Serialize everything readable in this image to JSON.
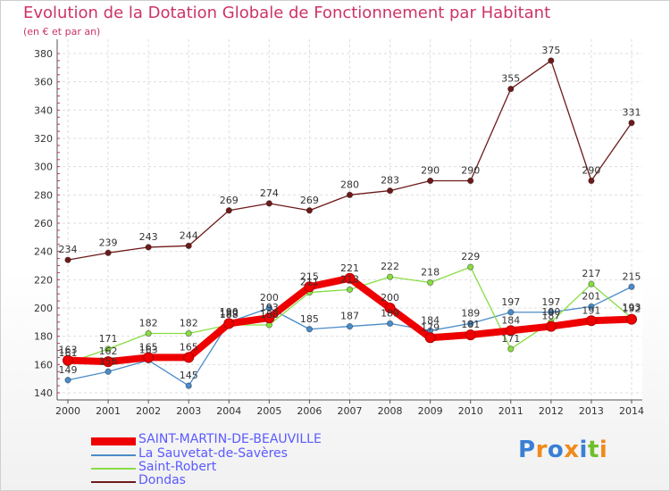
{
  "header": {
    "title": "Evolution de la Dotation Globale de Fonctionnement par Habitant",
    "subtitle": "(en € et par an)"
  },
  "logo": {
    "text": "Proxiti"
  },
  "chart_data": {
    "type": "line",
    "title": "Evolution de la Dotation Globale de Fonctionnement par Habitant",
    "subtitle": "(en € et par an)",
    "xlabel": "",
    "ylabel": "",
    "ylim": [
      140,
      380
    ],
    "yticks": [
      140,
      160,
      180,
      200,
      220,
      240,
      260,
      280,
      300,
      320,
      340,
      360,
      380
    ],
    "x": [
      "2000",
      "2001",
      "2002",
      "2003",
      "2004",
      "2005",
      "2006",
      "2007",
      "2008",
      "2009",
      "2010",
      "2011",
      "2012",
      "2013",
      "2014"
    ],
    "legend_position": "bottom-left",
    "series": [
      {
        "name": "Dondas",
        "color": "#6e1a1a",
        "values": [
          234,
          239,
          243,
          244,
          269,
          274,
          269,
          280,
          283,
          290,
          290,
          355,
          375,
          290,
          331
        ],
        "labels": [
          "234",
          "239",
          "243",
          "244",
          "269",
          "274",
          "269",
          "280",
          "283",
          "290",
          "290",
          "355",
          "375",
          "290",
          "331"
        ]
      },
      {
        "name": "La Sauvetat-de-Savères",
        "color": "#4a8cc8",
        "values": [
          149,
          155,
          163,
          145,
          190,
          200,
          185,
          187,
          189,
          184,
          189,
          197,
          197,
          201,
          215
        ],
        "labels": [
          "149",
          "155",
          "163",
          "145",
          "190",
          "200",
          "185",
          "187",
          "189",
          "184",
          "189",
          "197",
          "197",
          "201",
          "215"
        ]
      },
      {
        "name": "Saint-Robert",
        "color": "#88dd44",
        "values": [
          161,
          171,
          182,
          182,
          188,
          188,
          211,
          213,
          222,
          218,
          229,
          171,
          190,
          217,
          193
        ],
        "labels": [
          "161",
          "171",
          "182",
          "182",
          "188",
          "188",
          "211",
          "213",
          "222",
          "218",
          "229",
          "171",
          "190",
          "217",
          "193"
        ]
      },
      {
        "name": "SAINT-MARTIN-DE-BEAUVILLE",
        "color": "#ee0000",
        "values": [
          163,
          162,
          165,
          165,
          189,
          193,
          215,
          221,
          200,
          179,
          181,
          184,
          187,
          191,
          192
        ],
        "labels": [
          "163",
          "162",
          "165",
          "165",
          "189",
          "193",
          "215",
          "221",
          "200",
          "179",
          "181",
          "184",
          "187",
          "191",
          "192"
        ]
      }
    ],
    "legend": [
      {
        "name": "SAINT-MARTIN-DE-BEAUVILLE",
        "color": "#ee0000"
      },
      {
        "name": "La Sauvetat-de-Savères",
        "color": "#4a8cc8"
      },
      {
        "name": "Saint-Robert",
        "color": "#88dd44"
      },
      {
        "name": "Dondas",
        "color": "#6e1a1a"
      }
    ]
  }
}
